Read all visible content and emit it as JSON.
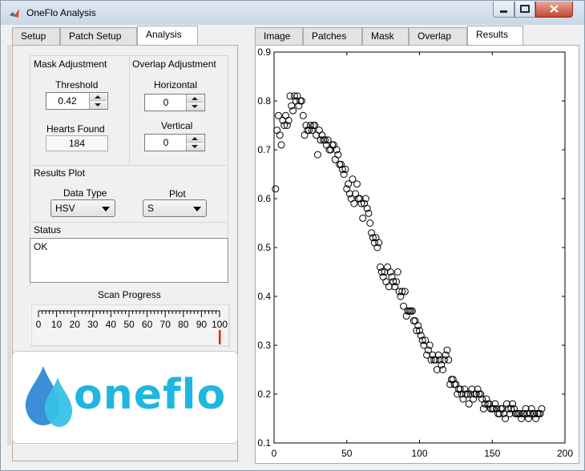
{
  "window": {
    "title": "OneFlo Analysis"
  },
  "left_tabs": [
    {
      "label": "Setup",
      "active": false
    },
    {
      "label": "Patch Setup",
      "active": false
    },
    {
      "label": "Analysis",
      "active": true
    }
  ],
  "right_tabs": [
    {
      "label": "Image",
      "active": false
    },
    {
      "label": "Patches",
      "active": false
    },
    {
      "label": "Mask",
      "active": false
    },
    {
      "label": "Overlap",
      "active": false
    },
    {
      "label": "Results",
      "active": true
    }
  ],
  "mask_adjustment": {
    "title": "Mask Adjustment",
    "threshold_label": "Threshold",
    "threshold_value": "0.42",
    "hearts_label": "Hearts Found",
    "hearts_value": "184"
  },
  "overlap_adjustment": {
    "title": "Overlap Adjustment",
    "horizontal_label": "Horizontal",
    "horizontal_value": "0",
    "vertical_label": "Vertical",
    "vertical_value": "0"
  },
  "results_plot": {
    "title": "Results Plot",
    "data_type_label": "Data Type",
    "data_type_value": "HSV",
    "plot_label": "Plot",
    "plot_value": "S"
  },
  "status": {
    "title": "Status",
    "text": "OK"
  },
  "scan_progress": {
    "title": "Scan Progress",
    "ticks": [
      "0",
      "10",
      "20",
      "30",
      "40",
      "50",
      "60",
      "70",
      "80",
      "90",
      "100"
    ],
    "value": 100,
    "indicator_color": "#e02020"
  },
  "logo": {
    "text": "oneflo",
    "colors": {
      "drop_dark": "#3a8fd6",
      "drop_light": "#37c1e6",
      "text": "#1fb6e0"
    }
  },
  "chart_data": {
    "type": "scatter",
    "xlim": [
      0,
      200
    ],
    "ylim": [
      0.1,
      0.9
    ],
    "xticks": [
      "0",
      "50",
      "100",
      "150",
      "200"
    ],
    "yticks": [
      "0.1",
      "0.2",
      "0.3",
      "0.4",
      "0.5",
      "0.6",
      "0.7",
      "0.8",
      "0.9"
    ],
    "grid": false,
    "marker": "open-circle",
    "x": [
      1,
      2,
      3,
      4,
      5,
      6,
      7,
      8,
      9,
      10,
      11,
      12,
      13,
      14,
      15,
      16,
      17,
      18,
      19,
      20,
      21,
      22,
      23,
      24,
      25,
      26,
      27,
      28,
      29,
      30,
      31,
      32,
      33,
      34,
      35,
      36,
      37,
      38,
      39,
      40,
      41,
      42,
      43,
      44,
      45,
      46,
      47,
      48,
      49,
      50,
      51,
      52,
      53,
      54,
      55,
      56,
      57,
      58,
      59,
      60,
      61,
      62,
      63,
      64,
      65,
      66,
      67,
      68,
      69,
      70,
      71,
      72,
      73,
      74,
      75,
      76,
      77,
      78,
      79,
      80,
      81,
      82,
      83,
      84,
      85,
      86,
      87,
      88,
      89,
      90,
      91,
      92,
      93,
      94,
      95,
      96,
      97,
      98,
      99,
      100,
      101,
      102,
      103,
      104,
      105,
      106,
      107,
      108,
      109,
      110,
      111,
      112,
      113,
      114,
      115,
      116,
      117,
      118,
      119,
      120,
      121,
      122,
      123,
      124,
      125,
      126,
      127,
      128,
      129,
      130,
      131,
      132,
      133,
      134,
      135,
      136,
      137,
      138,
      139,
      140,
      141,
      142,
      143,
      144,
      145,
      146,
      147,
      148,
      149,
      150,
      151,
      152,
      153,
      154,
      155,
      156,
      157,
      158,
      159,
      160,
      161,
      162,
      163,
      164,
      165,
      166,
      167,
      168,
      169,
      170,
      171,
      172,
      173,
      174,
      175,
      176,
      177,
      178,
      179,
      180,
      181,
      182,
      183,
      184
    ],
    "y": [
      0.62,
      0.74,
      0.77,
      0.73,
      0.71,
      0.76,
      0.75,
      0.77,
      0.75,
      0.76,
      0.81,
      0.79,
      0.78,
      0.81,
      0.8,
      0.81,
      0.79,
      0.8,
      0.8,
      0.77,
      0.73,
      0.75,
      0.74,
      0.74,
      0.75,
      0.74,
      0.75,
      0.75,
      0.73,
      0.69,
      0.74,
      0.72,
      0.73,
      0.72,
      0.72,
      0.71,
      0.72,
      0.7,
      0.7,
      0.71,
      0.71,
      0.68,
      0.7,
      0.69,
      0.67,
      0.67,
      0.66,
      0.65,
      0.66,
      0.62,
      0.63,
      0.61,
      0.6,
      0.64,
      0.59,
      0.61,
      0.63,
      0.6,
      0.6,
      0.59,
      0.56,
      0.59,
      0.6,
      0.58,
      0.57,
      0.55,
      0.53,
      0.52,
      0.51,
      0.52,
      0.5,
      0.51,
      0.46,
      0.45,
      0.44,
      0.45,
      0.43,
      0.46,
      0.42,
      0.45,
      0.44,
      0.43,
      0.42,
      0.43,
      0.45,
      0.41,
      0.4,
      0.41,
      0.38,
      0.41,
      0.36,
      0.37,
      0.37,
      0.37,
      0.37,
      0.35,
      0.35,
      0.33,
      0.34,
      0.33,
      0.32,
      0.31,
      0.3,
      0.31,
      0.28,
      0.29,
      0.3,
      0.27,
      0.28,
      0.27,
      0.27,
      0.25,
      0.28,
      0.27,
      0.26,
      0.25,
      0.27,
      0.28,
      0.29,
      0.27,
      0.22,
      0.23,
      0.23,
      0.22,
      0.22,
      0.2,
      0.21,
      0.21,
      0.2,
      0.19,
      0.21,
      0.2,
      0.2,
      0.18,
      0.2,
      0.21,
      0.19,
      0.2,
      0.2,
      0.21,
      0.2,
      0.2,
      0.19,
      0.17,
      0.18,
      0.19,
      0.18,
      0.18,
      0.17,
      0.17,
      0.17,
      0.18,
      0.17,
      0.16,
      0.16,
      0.17,
      0.17,
      0.16,
      0.15,
      0.18,
      0.17,
      0.16,
      0.17,
      0.18,
      0.17,
      0.16,
      0.16,
      0.16,
      0.16,
      0.15,
      0.16,
      0.16,
      0.17,
      0.16,
      0.15,
      0.16,
      0.17,
      0.16,
      0.16,
      0.15,
      0.16,
      0.16,
      0.16,
      0.17
    ]
  }
}
